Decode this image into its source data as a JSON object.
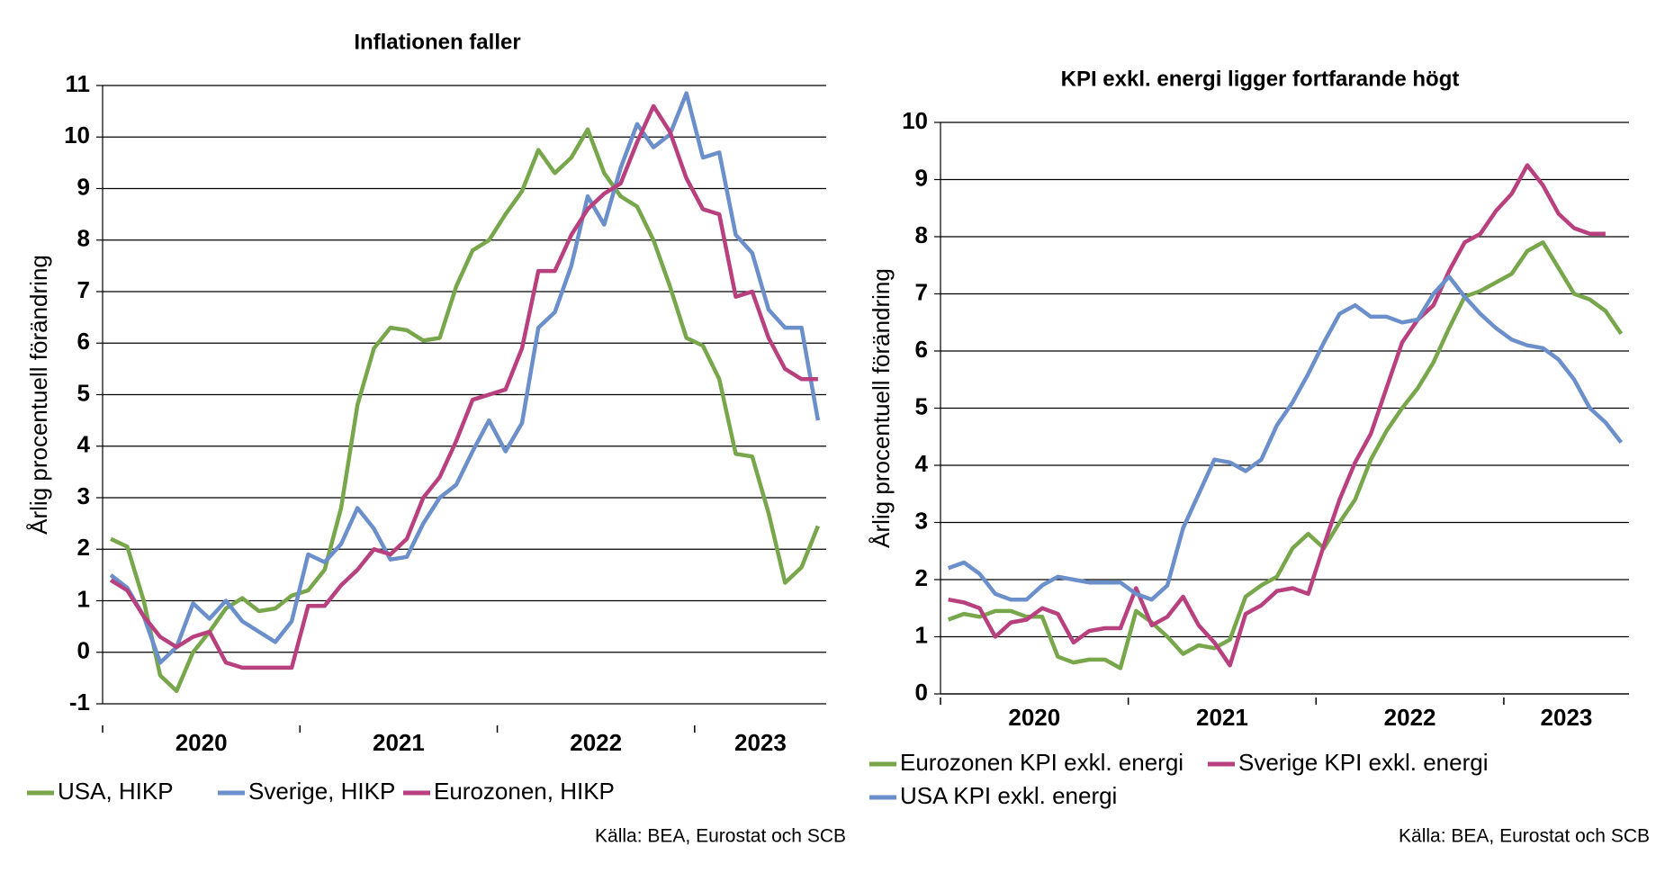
{
  "chart_data": [
    {
      "type": "line",
      "title": "Inflationen faller",
      "y_label": "Årlig procentuell förändring",
      "year_labels": [
        "2020",
        "2021",
        "2022",
        "2023"
      ],
      "ylim": [
        -1,
        11
      ],
      "yticks": [
        -1,
        0,
        1,
        2,
        3,
        4,
        5,
        6,
        7,
        8,
        9,
        10,
        11
      ],
      "grid": true,
      "source": "Källa: BEA, Eurostat och SCB",
      "series": [
        {
          "name": "USA, HIKP",
          "color": "#77a64b",
          "values": [
            2.2,
            2.05,
            1.0,
            -0.45,
            -0.75,
            0.0,
            0.4,
            0.85,
            1.05,
            0.8,
            0.85,
            1.1,
            1.2,
            1.6,
            2.8,
            4.8,
            5.9,
            6.3,
            6.25,
            6.05,
            6.1,
            7.1,
            7.8,
            8.0,
            8.5,
            8.95,
            9.75,
            9.3,
            9.6,
            10.15,
            9.3,
            8.85,
            8.65,
            8.0,
            7.1,
            6.1,
            5.95,
            5.3,
            3.85,
            3.8,
            2.7,
            1.35,
            1.65,
            2.45
          ]
        },
        {
          "name": "Sverige, HIKP",
          "color": "#6a8fca",
          "values": [
            1.5,
            1.25,
            0.7,
            -0.2,
            0.1,
            0.95,
            0.65,
            1.0,
            0.6,
            0.4,
            0.2,
            0.6,
            1.9,
            1.75,
            2.1,
            2.8,
            2.4,
            1.8,
            1.85,
            2.5,
            3.0,
            3.25,
            3.9,
            4.5,
            3.9,
            4.45,
            6.3,
            6.6,
            7.5,
            8.85,
            8.3,
            9.4,
            10.25,
            9.8,
            10.05,
            10.85,
            9.6,
            9.7,
            8.1,
            7.75,
            6.65,
            6.3,
            6.3,
            4.5
          ]
        },
        {
          "name": "Eurozonen, HIKP",
          "color": "#b8407e",
          "values": [
            1.4,
            1.2,
            0.7,
            0.3,
            0.1,
            0.3,
            0.4,
            -0.2,
            -0.3,
            -0.3,
            -0.3,
            -0.3,
            0.9,
            0.9,
            1.3,
            1.6,
            2.0,
            1.9,
            2.2,
            3.0,
            3.4,
            4.1,
            4.9,
            5.0,
            5.1,
            5.9,
            7.4,
            7.4,
            8.1,
            8.6,
            8.9,
            9.1,
            9.9,
            10.6,
            10.1,
            9.2,
            8.6,
            8.5,
            6.9,
            7.0,
            6.1,
            5.5,
            5.3,
            5.3
          ]
        }
      ]
    },
    {
      "type": "line",
      "title": "KPI exkl. energi ligger fortfarande högt",
      "y_label": "Årlig procentuell förändring",
      "year_labels": [
        "2020",
        "2021",
        "2022",
        "2023"
      ],
      "ylim": [
        0,
        10
      ],
      "yticks": [
        0,
        1,
        2,
        3,
        4,
        5,
        6,
        7,
        8,
        9,
        10
      ],
      "grid": true,
      "source": "Källa: BEA, Eurostat och SCB",
      "series": [
        {
          "name": "Eurozonen KPI exkl. energi",
          "color": "#77a64b",
          "values": [
            1.3,
            1.4,
            1.35,
            1.45,
            1.45,
            1.35,
            1.35,
            0.65,
            0.55,
            0.6,
            0.6,
            0.45,
            1.45,
            1.25,
            1.0,
            0.7,
            0.85,
            0.8,
            0.95,
            1.7,
            1.9,
            2.05,
            2.55,
            2.8,
            2.55,
            3.0,
            3.4,
            4.1,
            4.6,
            5.0,
            5.35,
            5.8,
            6.4,
            6.95,
            7.05,
            7.2,
            7.35,
            7.75,
            7.9,
            7.45,
            7.0,
            6.9,
            6.7,
            6.3
          ]
        },
        {
          "name": "Sverige KPI exkl. energi",
          "color": "#b8407e",
          "values": [
            1.65,
            1.6,
            1.5,
            1.0,
            1.25,
            1.3,
            1.5,
            1.4,
            0.9,
            1.1,
            1.15,
            1.15,
            1.85,
            1.2,
            1.35,
            1.7,
            1.2,
            0.9,
            0.5,
            1.4,
            1.55,
            1.8,
            1.85,
            1.75,
            2.6,
            3.4,
            4.05,
            4.55,
            5.35,
            6.15,
            6.55,
            6.8,
            7.4,
            7.9,
            8.05,
            8.45,
            8.75,
            9.25,
            8.9,
            8.4,
            8.15,
            8.05,
            8.05,
            null
          ]
        },
        {
          "name": "USA KPI exkl. energi",
          "color": "#6a8fca",
          "values": [
            2.2,
            2.3,
            2.1,
            1.75,
            1.65,
            1.65,
            1.9,
            2.05,
            2.0,
            1.95,
            1.95,
            1.95,
            1.75,
            1.65,
            1.9,
            2.9,
            3.5,
            4.1,
            4.05,
            3.9,
            4.1,
            4.7,
            5.1,
            5.6,
            6.15,
            6.65,
            6.8,
            6.6,
            6.6,
            6.5,
            6.55,
            7.0,
            7.3,
            6.95,
            6.65,
            6.4,
            6.2,
            6.1,
            6.05,
            5.85,
            5.5,
            5.0,
            4.75,
            4.4
          ]
        }
      ]
    }
  ]
}
